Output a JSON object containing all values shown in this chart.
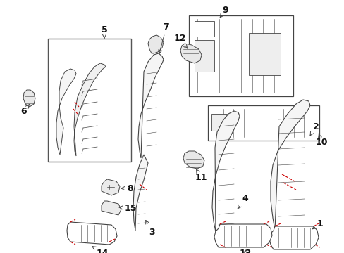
{
  "background_color": "#ffffff",
  "line_color": "#444444",
  "red_color": "#cc0000",
  "text_color": "#111111",
  "fig_w": 4.89,
  "fig_h": 3.6,
  "dpi": 100
}
